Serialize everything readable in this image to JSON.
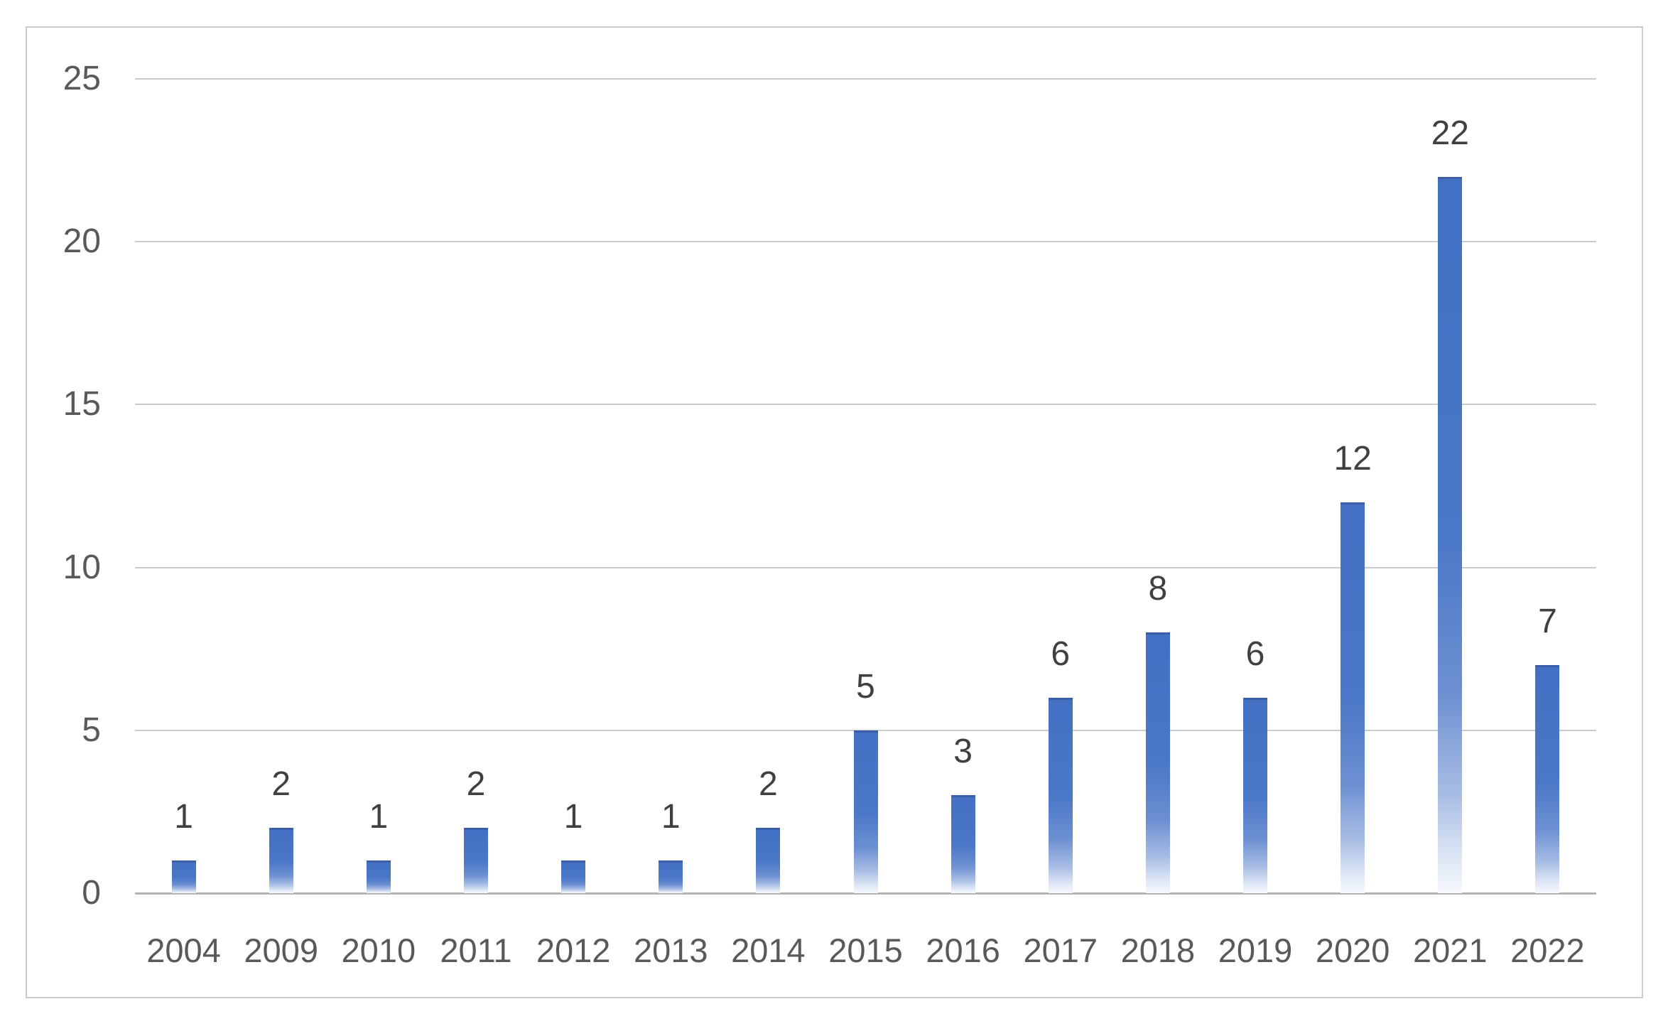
{
  "chart_data": {
    "type": "bar",
    "title": "",
    "xlabel": "",
    "ylabel": "",
    "categories": [
      "2004",
      "2009",
      "2010",
      "2011",
      "2012",
      "2013",
      "2014",
      "2015",
      "2016",
      "2017",
      "2018",
      "2019",
      "2020",
      "2021",
      "2022"
    ],
    "values": [
      1,
      2,
      1,
      2,
      1,
      1,
      2,
      5,
      3,
      6,
      8,
      6,
      12,
      22,
      7
    ],
    "data_labels": [
      "1",
      "2",
      "1",
      "2",
      "1",
      "1",
      "2",
      "5",
      "3",
      "6",
      "8",
      "6",
      "12",
      "22",
      "7"
    ],
    "yticks": [
      0,
      5,
      10,
      15,
      20,
      25
    ],
    "ylim": [
      0,
      25
    ],
    "grid": true,
    "legend": false,
    "colors": {
      "bar_top": "#4470c3",
      "bar_bottom": "#f6f9fd",
      "bar_top_edge": "#3a5fa8",
      "gridline": "#c9cccf",
      "axis_line": "#b2b5b8",
      "tick_label": "#595959",
      "data_label": "#404040",
      "chart_border": "#cacccd",
      "background": "#ffffff"
    }
  }
}
